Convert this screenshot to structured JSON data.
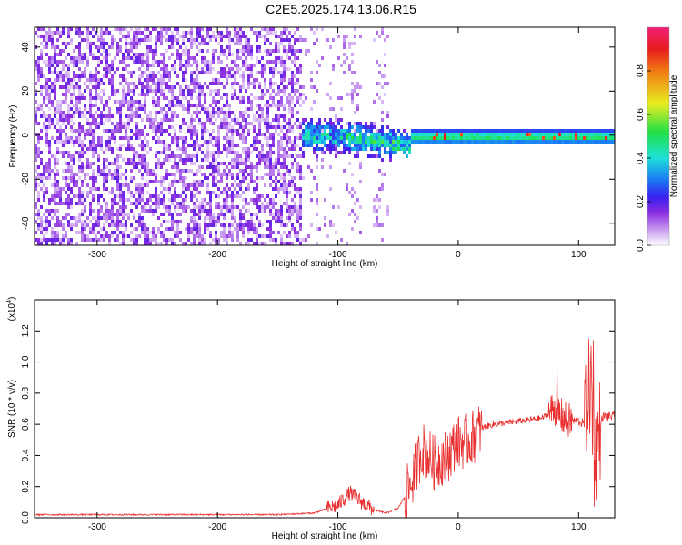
{
  "page": {
    "title": "C2E5.2025.174.13.06.R15"
  },
  "chart_data": [
    {
      "type": "heatmap",
      "title": "C2E5.2025.174.13.06.R15",
      "xlabel": "Height of straight line (km)",
      "ylabel": "Frequency (Hz)",
      "xlim": [
        -352,
        130
      ],
      "ylim": [
        -50,
        49
      ],
      "xticks": [
        -300,
        -200,
        -100,
        0,
        100
      ],
      "yticks": [
        -40,
        -20,
        0,
        20,
        40
      ],
      "colorbar": {
        "label": "Normalized spectral amplitude",
        "range": [
          0,
          1
        ],
        "ticks": [
          0,
          0.2,
          0.4,
          0.6,
          0.8
        ],
        "colormap": "rainbow (white-purple-blue-cyan-green-yellow-red-magenta)"
      },
      "features": [
        {
          "x_range": [
            -352,
            -130
          ],
          "description": "broadband low-amplitude purple noise across all frequencies"
        },
        {
          "x_range": [
            -130,
            -40
          ],
          "description": "energy concentrated near 0 Hz, blue-cyan patches"
        },
        {
          "x_range": [
            -40,
            130
          ],
          "description": "narrow band at ~0 Hz, green with yellow-red peaks"
        }
      ],
      "grid": false
    },
    {
      "type": "line",
      "xlabel": "Height of straight line (km)",
      "ylabel": "SNR (10 * v/v)",
      "yscale_label": "(x10",
      "yscale_exp": "4",
      "yscale_close": ")",
      "xlim": [
        -352,
        130
      ],
      "ylim": [
        0,
        1.4
      ],
      "xticks": [
        -300,
        -200,
        -100,
        0,
        100
      ],
      "yticks": [
        0.0,
        0.2,
        0.4,
        0.6,
        0.8,
        1.0,
        1.2
      ],
      "x": [
        -352,
        -300,
        -250,
        -200,
        -150,
        -120,
        -100,
        -90,
        -80,
        -70,
        -60,
        -50,
        -40,
        -30,
        -20,
        -10,
        0,
        10,
        20,
        30,
        50,
        70,
        80,
        90,
        100,
        105,
        110,
        113,
        120,
        130
      ],
      "y": [
        0.02,
        0.02,
        0.02,
        0.02,
        0.02,
        0.03,
        0.08,
        0.16,
        0.1,
        0.05,
        0.03,
        0.06,
        0.2,
        0.45,
        0.35,
        0.4,
        0.48,
        0.5,
        0.58,
        0.6,
        0.62,
        0.64,
        0.7,
        0.62,
        0.62,
        0.6,
        0.9,
        0.4,
        0.65,
        0.65
      ],
      "color": "#e83030",
      "grid": false
    }
  ]
}
